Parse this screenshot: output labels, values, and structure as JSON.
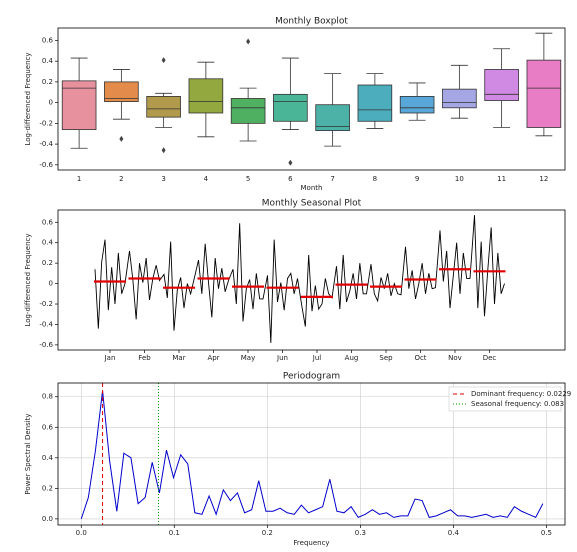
{
  "chart_data": [
    {
      "type": "box",
      "title": "Monthly Boxplot",
      "x_label": "Month",
      "y_label": "Log-differenced Frequency",
      "categories": [
        1,
        2,
        3,
        4,
        5,
        6,
        7,
        8,
        9,
        10,
        11,
        12
      ],
      "boxes": [
        {
          "low": -0.44,
          "q1": -0.26,
          "median": 0.14,
          "q3": 0.21,
          "high": 0.43,
          "outliers": []
        },
        {
          "low": -0.16,
          "q1": 0.01,
          "median": 0.04,
          "q3": 0.2,
          "high": 0.32,
          "outliers": [
            -0.35
          ]
        },
        {
          "low": -0.24,
          "q1": -0.14,
          "median": -0.06,
          "q3": 0.06,
          "high": 0.09,
          "outliers": [
            0.41,
            -0.46
          ]
        },
        {
          "low": -0.33,
          "q1": -0.1,
          "median": 0.01,
          "q3": 0.23,
          "high": 0.39,
          "outliers": []
        },
        {
          "low": -0.37,
          "q1": -0.2,
          "median": -0.05,
          "q3": 0.04,
          "high": 0.14,
          "outliers": [
            0.59
          ]
        },
        {
          "low": -0.26,
          "q1": -0.18,
          "median": 0.01,
          "q3": 0.08,
          "high": 0.43,
          "outliers": [
            -0.58
          ]
        },
        {
          "low": -0.42,
          "q1": -0.27,
          "median": -0.23,
          "q3": -0.02,
          "high": 0.28,
          "outliers": []
        },
        {
          "low": -0.25,
          "q1": -0.18,
          "median": -0.07,
          "q3": 0.17,
          "high": 0.28,
          "outliers": []
        },
        {
          "low": -0.17,
          "q1": -0.1,
          "median": -0.05,
          "q3": 0.06,
          "high": 0.19,
          "outliers": []
        },
        {
          "low": -0.15,
          "q1": -0.05,
          "median": 0.0,
          "q3": 0.13,
          "high": 0.36,
          "outliers": []
        },
        {
          "low": -0.24,
          "q1": 0.02,
          "median": 0.08,
          "q3": 0.32,
          "high": 0.52,
          "outliers": []
        },
        {
          "low": -0.32,
          "q1": -0.24,
          "median": 0.14,
          "q3": 0.41,
          "high": 0.67,
          "outliers": []
        }
      ],
      "colors": [
        "#e8919e",
        "#e38b4a",
        "#b29a4c",
        "#93a83f",
        "#4fb061",
        "#4bb597",
        "#4cb1a6",
        "#4cadbd",
        "#58a7d8",
        "#a5a7e4",
        "#d18ae3",
        "#e87dc5"
      ],
      "ylim": [
        -0.65,
        0.72
      ],
      "yticks": [
        -0.6,
        -0.4,
        -0.2,
        0.0,
        0.2,
        0.4,
        0.6
      ]
    },
    {
      "type": "seasonal",
      "title": "Monthly Seasonal Plot",
      "y_label": "Log-differenced Frequency",
      "categories": [
        "Jan",
        "Feb",
        "Mar",
        "Apr",
        "May",
        "Jun",
        "Jul",
        "Aug",
        "Sep",
        "Oct",
        "Nov",
        "Dec"
      ],
      "values": [
        [
          0.14,
          -0.44,
          0.21,
          0.43,
          -0.26,
          0.16,
          -0.2,
          0.3,
          -0.1,
          0.0
        ],
        [
          0.32,
          0.04,
          -0.35,
          0.2,
          0.01,
          0.25,
          -0.16,
          0.05,
          0.18,
          0.03
        ],
        [
          0.09,
          -0.14,
          0.41,
          -0.46,
          -0.06,
          0.06,
          -0.24,
          0.0,
          -0.1,
          0.04
        ],
        [
          0.23,
          -0.1,
          0.39,
          0.01,
          -0.33,
          0.25,
          -0.05,
          0.15,
          -0.08,
          0.03
        ],
        [
          0.14,
          -0.2,
          0.59,
          -0.37,
          -0.05,
          0.04,
          -0.25,
          0.1,
          -0.15,
          -0.15
        ],
        [
          0.08,
          -0.58,
          0.43,
          -0.18,
          0.01,
          -0.26,
          0.05,
          0.1,
          -0.1,
          0.05
        ],
        [
          -0.23,
          -0.42,
          0.28,
          -0.27,
          -0.02,
          -0.25,
          -0.2,
          0.05,
          -0.1,
          -0.14
        ],
        [
          0.17,
          -0.25,
          0.28,
          -0.18,
          -0.07,
          0.1,
          -0.15,
          0.2,
          -0.1,
          -0.1
        ],
        [
          0.19,
          -0.1,
          -0.17,
          0.06,
          -0.05,
          0.1,
          -0.12,
          0.0,
          -0.1,
          -0.11
        ],
        [
          0.36,
          -0.05,
          0.13,
          -0.15,
          0.0,
          0.2,
          -0.1,
          0.1,
          -0.05,
          -0.04
        ],
        [
          0.52,
          0.02,
          0.32,
          -0.24,
          0.08,
          0.4,
          -0.1,
          0.3,
          0.05,
          0.05
        ],
        [
          0.67,
          -0.24,
          0.41,
          -0.32,
          0.14,
          0.55,
          -0.2,
          0.3,
          -0.1,
          0.0
        ]
      ],
      "means": [
        0.02,
        0.05,
        -0.04,
        0.05,
        -0.03,
        -0.04,
        -0.13,
        -0.01,
        -0.03,
        0.04,
        0.14,
        0.12
      ],
      "line_color": "#000000",
      "mean_color": "#e00000",
      "ylim": [
        -0.65,
        0.72
      ],
      "yticks": [
        -0.6,
        -0.4,
        -0.2,
        0.0,
        0.2,
        0.4,
        0.6
      ]
    },
    {
      "type": "line",
      "title": "Periodogram",
      "x_label": "Frequency",
      "y_label": "Power Spectral Density",
      "x": [
        0,
        0.0076,
        0.0153,
        0.0229,
        0.0305,
        0.0382,
        0.0458,
        0.0534,
        0.0611,
        0.0687,
        0.0763,
        0.084,
        0.0916,
        0.0992,
        0.1069,
        0.1145,
        0.1221,
        0.1298,
        0.1374,
        0.145,
        0.1527,
        0.1603,
        0.1679,
        0.1756,
        0.1832,
        0.1908,
        0.1985,
        0.2061,
        0.2137,
        0.2214,
        0.229,
        0.2366,
        0.2443,
        0.2519,
        0.2595,
        0.2672,
        0.2748,
        0.2824,
        0.2901,
        0.2977,
        0.3053,
        0.313,
        0.3206,
        0.3282,
        0.3359,
        0.3435,
        0.3511,
        0.3588,
        0.3664,
        0.374,
        0.3817,
        0.3893,
        0.3969,
        0.4046,
        0.4122,
        0.4198,
        0.4275,
        0.4351,
        0.4427,
        0.4504,
        0.458,
        0.4656,
        0.4733,
        0.4809,
        0.4885,
        0.4962
      ],
      "values": [
        0,
        0.14,
        0.45,
        0.84,
        0.38,
        0.05,
        0.43,
        0.4,
        0.1,
        0.14,
        0.37,
        0.17,
        0.45,
        0.27,
        0.42,
        0.36,
        0.04,
        0.03,
        0.15,
        0.03,
        0.19,
        0.12,
        0.17,
        0.04,
        0.06,
        0.25,
        0.05,
        0.05,
        0.07,
        0.04,
        0.03,
        0.09,
        0.04,
        0.06,
        0.08,
        0.26,
        0.05,
        0.04,
        0.08,
        0.01,
        0.03,
        0.06,
        0.03,
        0.04,
        0.01,
        0.02,
        0.02,
        0.13,
        0.12,
        0.01,
        0.02,
        0.04,
        0.06,
        0.02,
        0.02,
        0.01,
        0.02,
        0.03,
        0.01,
        0.02,
        0.01,
        0.08,
        0.05,
        0.03,
        0.01,
        0.1
      ],
      "color": "#0000cc",
      "xlim": [
        -0.025,
        0.52
      ],
      "ylim": [
        -0.04,
        0.89
      ],
      "xticks": [
        {
          "value": 0,
          "label": "0.0"
        },
        0.1,
        0.2,
        0.3,
        0.4,
        0.5
      ],
      "yticks": [
        {
          "value": 0,
          "label": "0.0"
        },
        0.2,
        0.4,
        0.6,
        0.8
      ],
      "grid": true,
      "legend": "upper right",
      "vlines": [
        {
          "name": "Dominant frequency: 0.0229",
          "x": 0.0229,
          "color": "#e00000",
          "style": "dashed"
        },
        {
          "name": "Seasonal frequency: 0.083",
          "x": 0.083,
          "color": "#009900",
          "style": "dotted"
        }
      ]
    }
  ]
}
